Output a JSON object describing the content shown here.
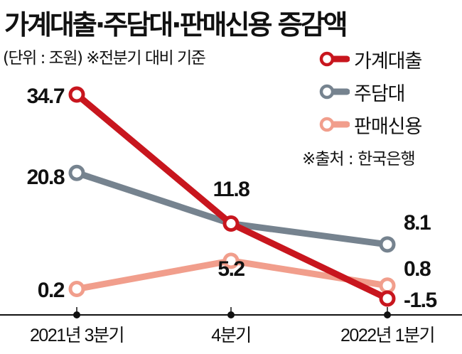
{
  "header": {
    "title": "가계대출·주담대·판매신용 증감액",
    "subtitle": "(단위 : 조원) ※전분기 대비 기준",
    "source": "※출처 : 한국은행"
  },
  "colors": {
    "household_loan": "#c8161e",
    "mortgage": "#76838f",
    "sales_credit": "#f19e8c"
  },
  "chart_data": {
    "type": "line",
    "title": "가계대출·주담대·판매신용 증감액",
    "unit": "조원",
    "categories": [
      "2021년 3분기",
      "4분기",
      "2022년 1분기"
    ],
    "ylim": [
      -3,
      38
    ],
    "grid": false,
    "legend_position": "top-right",
    "series": [
      {
        "name": "가계대출",
        "values": [
          34.7,
          11.8,
          -1.5
        ],
        "labels": [
          "34.7",
          "11.8",
          "-1.5"
        ]
      },
      {
        "name": "주담대",
        "values": [
          20.8,
          11.8,
          8.1
        ],
        "labels": [
          "20.8",
          "",
          "8.1"
        ]
      },
      {
        "name": "판매신용",
        "values": [
          0.2,
          5.2,
          0.8
        ],
        "labels": [
          "0.2",
          "5.2",
          "0.8"
        ]
      }
    ]
  }
}
